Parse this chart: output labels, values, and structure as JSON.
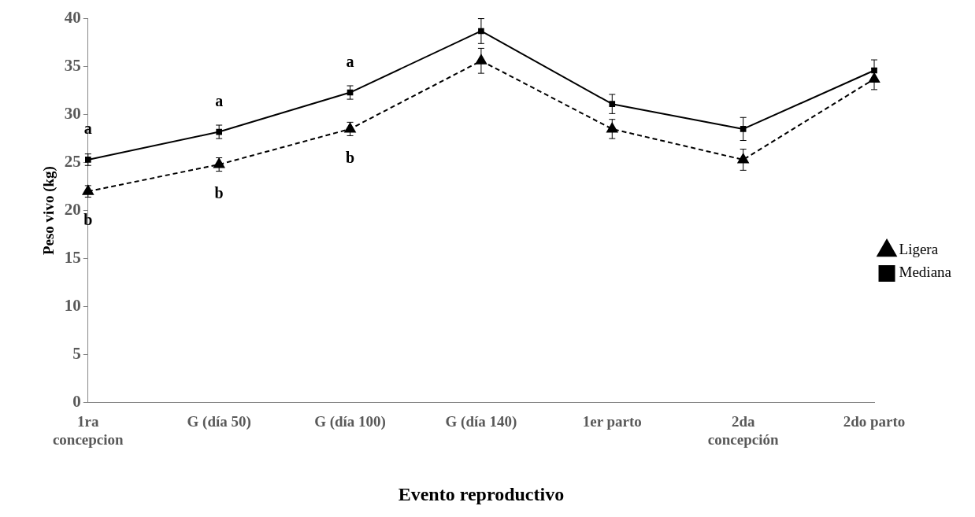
{
  "chart_data": {
    "type": "line",
    "xlabel": "Evento reproductivo",
    "ylabel": "Peso vivo (kg)",
    "categories": [
      "1ra concepcion",
      "G (día 50)",
      "G (día 100)",
      "G (día 140)",
      "1er parto",
      "2da concepción",
      "2do parto"
    ],
    "series": [
      {
        "name": "Ligera",
        "color": "#000000",
        "marker": "triangle",
        "line_style": "dashed",
        "values": [
          22.0,
          24.8,
          28.5,
          35.6,
          28.5,
          25.3,
          33.7
        ],
        "errors": [
          0.6,
          0.7,
          0.7,
          1.3,
          1.0,
          1.1,
          1.1
        ]
      },
      {
        "name": "Mediana",
        "color": "#000000",
        "marker": "square",
        "line_style": "solid",
        "values": [
          25.3,
          28.2,
          32.3,
          38.7,
          31.1,
          28.5,
          34.6
        ],
        "errors": [
          0.6,
          0.7,
          0.7,
          1.3,
          1.0,
          1.2,
          1.1
        ]
      }
    ],
    "ylim": [
      0,
      40
    ],
    "yticks": [
      0,
      5,
      10,
      15,
      20,
      25,
      30,
      35,
      40
    ],
    "grid": false,
    "legend": "right",
    "annotations": [
      {
        "text": "a",
        "x": "1ra concepcion",
        "y": 25.3
      },
      {
        "text": "b",
        "x": "1ra concepcion",
        "y": 22.0
      },
      {
        "text": "a",
        "x": "G (día 50)",
        "y": 28.2
      },
      {
        "text": "b",
        "x": "G (día 50)",
        "y": 24.8
      },
      {
        "text": "a",
        "x": "G (día 100)",
        "y": 32.3
      },
      {
        "text": "b",
        "x": "G (día 100)",
        "y": 28.5
      }
    ]
  }
}
